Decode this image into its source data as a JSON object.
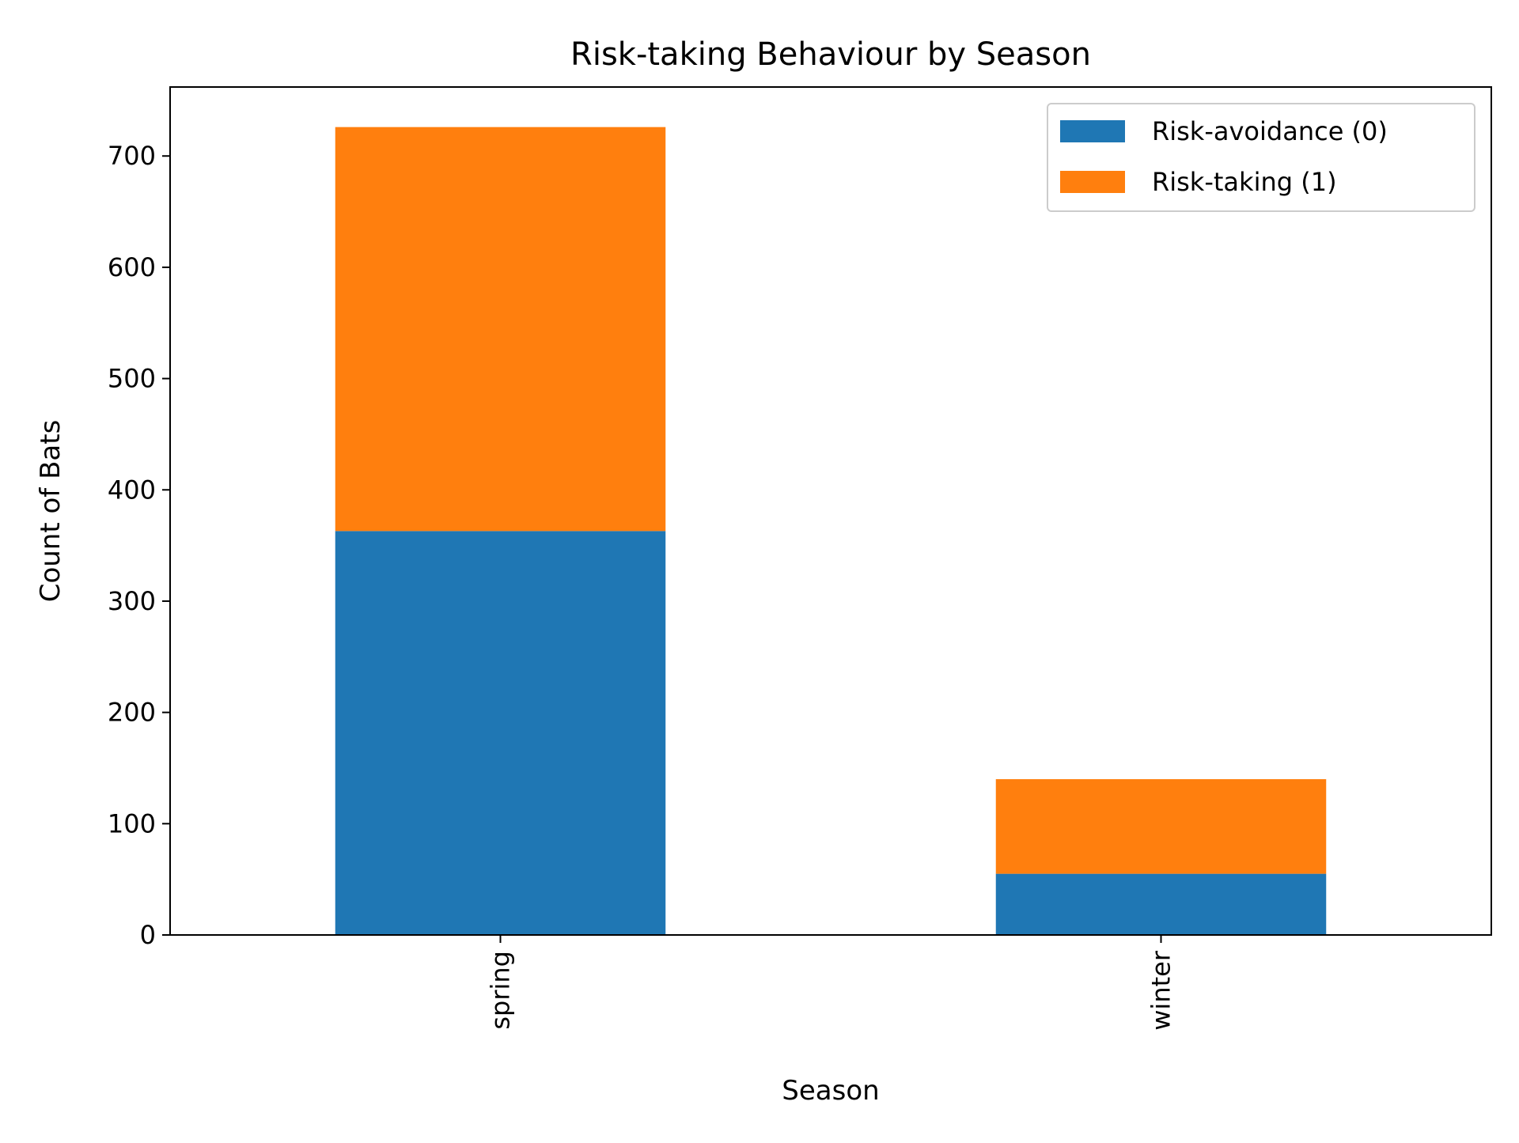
{
  "chart_data": {
    "type": "bar",
    "stacked": true,
    "title": "Risk-taking Behaviour by Season",
    "xlabel": "Season",
    "ylabel": "Count of Bats",
    "categories": [
      "spring",
      "winter"
    ],
    "series": [
      {
        "name": "Risk-avoidance (0)",
        "values": [
          363,
          55
        ],
        "color": "#1f77b4"
      },
      {
        "name": "Risk-taking (1)",
        "values": [
          363,
          85
        ],
        "color": "#ff7f0e"
      }
    ],
    "ylim": [
      0,
      762
    ],
    "yticks": [
      0,
      100,
      200,
      300,
      400,
      500,
      600,
      700
    ],
    "grid": false,
    "legend_position": "top-right"
  }
}
